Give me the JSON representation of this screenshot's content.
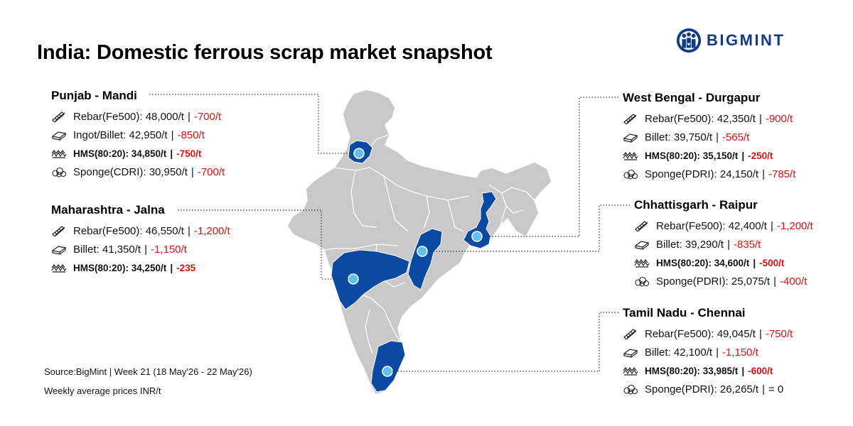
{
  "title": "India: Domestic ferrous scrap market snapshot",
  "logo_text": "BIGMINT",
  "colors": {
    "highlight": "#0b4aa2",
    "land": "#c9c9c9",
    "marker": "#5fc1ef",
    "negative": "#e01010"
  },
  "regions": [
    {
      "id": "punjab",
      "name": "Punjab - Mandi",
      "items": [
        {
          "icon": "rebar-icon",
          "label": "Rebar(Fe500): 48,000/t",
          "change": "-700/t"
        },
        {
          "icon": "billet-icon",
          "label": "Ingot/Billet: 42,950/t",
          "change": "-850/t"
        },
        {
          "icon": "hms-icon",
          "label": "HMS(80:20): 34,850/t",
          "change": "-750/t",
          "bold": true
        },
        {
          "icon": "sponge-icon",
          "label": "Sponge(CDRI): 30,950/t",
          "change": "-700/t"
        }
      ]
    },
    {
      "id": "maharashtra",
      "name": "Maharashtra - Jalna",
      "items": [
        {
          "icon": "rebar-icon",
          "label": "Rebar(Fe500): 46,550/t",
          "change": "-1,200/t"
        },
        {
          "icon": "billet-icon",
          "label": "Billet: 41,350/t",
          "change": "-1,150/t"
        },
        {
          "icon": "hms-icon",
          "label": "HMS(80:20): 34,250/t",
          "change": "-235",
          "bold": true
        }
      ]
    },
    {
      "id": "westbengal",
      "name": "West Bengal - Durgapur",
      "items": [
        {
          "icon": "rebar-icon",
          "label": "Rebar(Fe500): 42,350/t",
          "change": "-900/t"
        },
        {
          "icon": "billet-icon",
          "label": "Billet: 39,750/t",
          "change": "-565/t"
        },
        {
          "icon": "hms-icon",
          "label": "HMS(80:20): 35,150/t",
          "change": "-250/t",
          "bold": true
        },
        {
          "icon": "sponge-icon",
          "label": "Sponge(PDRI): 24,150/t",
          "change": "-785/t"
        }
      ]
    },
    {
      "id": "chhattisgarh",
      "name": "Chhattisgarh - Raipur",
      "items": [
        {
          "icon": "rebar-icon",
          "label": "Rebar(Fe500): 42,400/t",
          "change": "-1,200/t"
        },
        {
          "icon": "billet-icon",
          "label": "Billet: 39,290/t",
          "change": "-835/t"
        },
        {
          "icon": "hms-icon",
          "label": "HMS(80:20): 34,600/t",
          "change": "-500/t",
          "bold": true
        },
        {
          "icon": "sponge-icon",
          "label": "Sponge(PDRI): 25,075/t",
          "change": "-400/t"
        }
      ]
    },
    {
      "id": "tamilnadu",
      "name": "Tamil Nadu - Chennai",
      "items": [
        {
          "icon": "rebar-icon",
          "label": "Rebar(Fe500): 49,045/t",
          "change": "-750/t"
        },
        {
          "icon": "billet-icon",
          "label": "Billet: 42,100/t",
          "change": "-1,150/t"
        },
        {
          "icon": "hms-icon",
          "label": "HMS(80:20): 33,985/t",
          "change": "-600/t",
          "bold": true
        },
        {
          "icon": "sponge-icon",
          "label": "Sponge(PDRI): 26,265/t",
          "change": "= 0",
          "neutral": true
        }
      ]
    }
  ],
  "footer": {
    "source": "Source:BigMint | Week 21  (18 May'26 - 22 May'26)",
    "note": "Weekly average prices INR/t"
  }
}
